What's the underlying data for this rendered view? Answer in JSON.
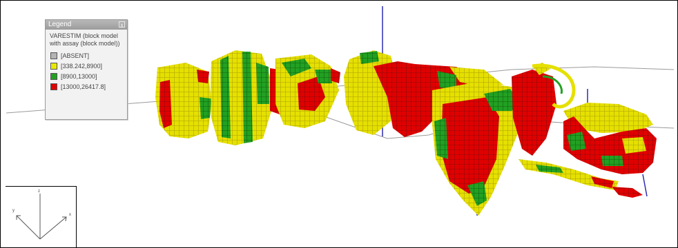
{
  "legend": {
    "title": "Legend",
    "close_glyph": "x",
    "model_label": "VARESTIM (block model with assay (block model))",
    "entries": [
      {
        "label": "[ABSENT]",
        "color": "#b4b4b4"
      },
      {
        "label": "[338.242,8900]",
        "color": "#e8e800"
      },
      {
        "label": "[8900,13000]",
        "color": "#22a022"
      },
      {
        "label": "[13000,26417.8]",
        "color": "#e00000"
      }
    ]
  },
  "axes": {
    "labels": [
      "z",
      "y",
      "x"
    ]
  },
  "colors": {
    "absent": "#b4b4b4",
    "low": "#e8e800",
    "mid": "#22a022",
    "high": "#e00000",
    "axis": "#2b2bb0",
    "grid": "#9a9a9a"
  }
}
